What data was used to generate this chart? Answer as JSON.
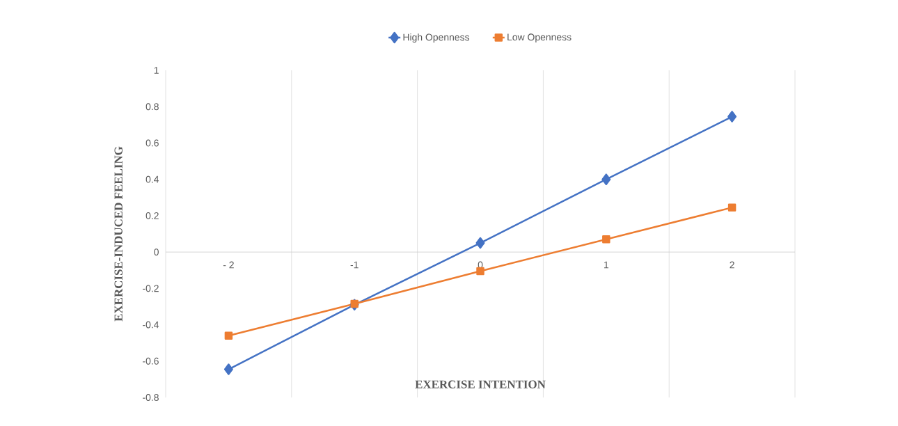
{
  "chart_data": {
    "type": "line",
    "xlabel": "EXERCISE INTENTION",
    "ylabel": "EXERCISE-INDUCED FEELING",
    "categories": [
      "- 2",
      "-1",
      "0",
      "1",
      "2"
    ],
    "series": [
      {
        "name": "High Openness",
        "color": "#4472c4",
        "marker": "diamond",
        "values": [
          -0.645,
          -0.29,
          0.05,
          0.4,
          0.745
        ]
      },
      {
        "name": "Low Openness",
        "color": "#ed7d31",
        "marker": "square",
        "values": [
          -0.46,
          -0.285,
          -0.105,
          0.07,
          0.245
        ]
      }
    ],
    "ylim": [
      -0.8,
      1
    ],
    "yticks": [
      -0.8,
      -0.6,
      -0.4,
      -0.2,
      0,
      0.2,
      0.4,
      0.6,
      0.8,
      1
    ],
    "grid": "x",
    "legend": "top",
    "line_style": "solid"
  }
}
